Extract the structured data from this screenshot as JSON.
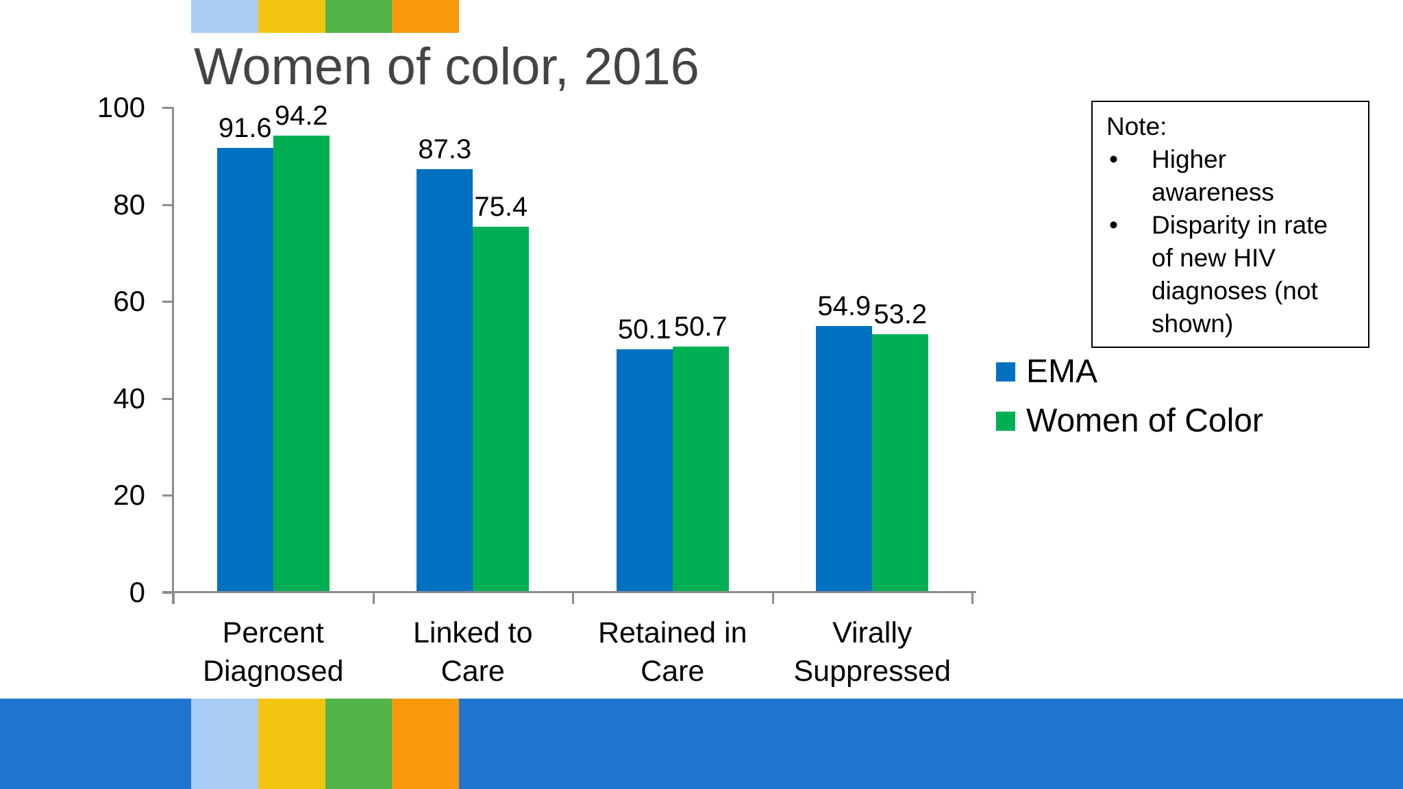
{
  "title": "Women of color, 2016",
  "note": {
    "heading": "Note:",
    "bullets": [
      "Higher awareness",
      "Disparity in rate of new HIV diagnoses (not shown)"
    ]
  },
  "legend": [
    {
      "label": "EMA",
      "color": "#0070C0"
    },
    {
      "label": "Women of Color",
      "color": "#00AF54"
    }
  ],
  "chart_data": {
    "type": "bar",
    "title": "Women of color, 2016",
    "categories": [
      "Percent Diagnosed",
      "Linked to Care",
      "Retained in Care",
      "Virally Suppressed"
    ],
    "category_lines": [
      [
        "Percent",
        "Diagnosed"
      ],
      [
        "Linked to",
        "Care"
      ],
      [
        "Retained in",
        "Care"
      ],
      [
        "Virally",
        "Suppressed"
      ]
    ],
    "series": [
      {
        "name": "EMA",
        "color": "#0070C0",
        "values": [
          91.6,
          87.3,
          50.1,
          54.9
        ]
      },
      {
        "name": "Women of Color",
        "color": "#00AF54",
        "values": [
          94.2,
          75.4,
          50.7,
          53.2
        ]
      }
    ],
    "xlabel": "",
    "ylabel": "",
    "ylim": [
      0,
      100
    ],
    "yticks": [
      0,
      20,
      40,
      60,
      80,
      100
    ],
    "grid": false,
    "legend_position": "right",
    "data_labels": true
  },
  "colors": {
    "bar_blue": "#0070C0",
    "bar_green": "#00AF54",
    "axis_gray": "#8C8C8C",
    "title_gray": "#444444",
    "banner_blue": "#2076CF",
    "deco_stripes": [
      "#A8CCF4",
      "#F2C512",
      "#52B446",
      "#F8990B"
    ]
  }
}
